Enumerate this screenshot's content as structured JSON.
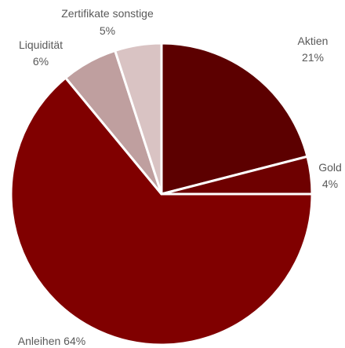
{
  "chart_data": {
    "type": "pie",
    "title": "",
    "slices": [
      {
        "name": "Aktien",
        "value": 21,
        "value_label": "21%",
        "color": "#5c0000"
      },
      {
        "name": "Gold",
        "value": 4,
        "value_label": "4%",
        "color": "#6e0000"
      },
      {
        "name": "Anleihen",
        "value": 64,
        "value_label": "64%",
        "combined_label": "Anleihen 64%",
        "color": "#800000"
      },
      {
        "name": "Liquidität",
        "value": 6,
        "value_label": "6%",
        "color": "#bf9f9f"
      },
      {
        "name": "Zertifikate sonstige",
        "value": 5,
        "value_label": "5%",
        "color": "#d9c3c3"
      }
    ],
    "start_angle": "12 o'clock",
    "direction": "clockwise",
    "slice_border_color": "#ffffff"
  }
}
